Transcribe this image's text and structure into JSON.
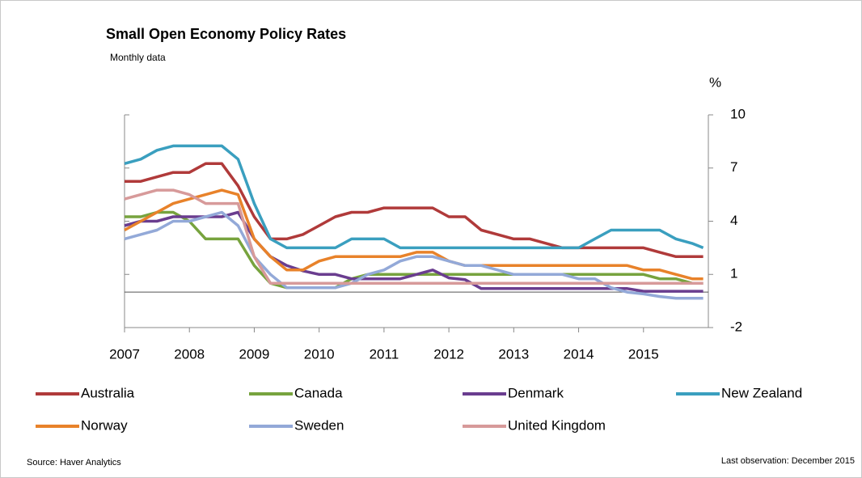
{
  "chart_data": {
    "type": "line",
    "title": "Small Open Economy  Policy Rates",
    "subtitle": "Monthly data",
    "y_label": "%",
    "source": "Source: Haver Analytics",
    "note": "Last observation: December  2015",
    "legend": "bottom",
    "xlim": [
      2007,
      2016
    ],
    "xticks": [
      2007,
      2008,
      2009,
      2010,
      2011,
      2012,
      2013,
      2014,
      2015
    ],
    "ylim": [
      -2,
      10
    ],
    "yticks": [
      -2,
      1,
      4,
      7,
      10
    ],
    "x": [
      2007,
      2007.25,
      2007.5,
      2007.75,
      2008,
      2008.25,
      2008.5,
      2008.75,
      2009,
      2009.25,
      2009.5,
      2009.75,
      2010,
      2010.25,
      2010.5,
      2010.75,
      2011,
      2011.25,
      2011.5,
      2011.75,
      2012,
      2012.25,
      2012.5,
      2012.75,
      2013,
      2013.25,
      2013.5,
      2013.75,
      2014,
      2014.25,
      2014.5,
      2014.75,
      2015,
      2015.25,
      2015.5,
      2015.75,
      2015.92
    ],
    "series": [
      {
        "name": "Australia",
        "color": "#b03a3a",
        "values": [
          6.25,
          6.25,
          6.5,
          6.75,
          6.75,
          7.25,
          7.25,
          6.0,
          4.25,
          3.0,
          3.0,
          3.25,
          3.75,
          4.25,
          4.5,
          4.5,
          4.75,
          4.75,
          4.75,
          4.75,
          4.25,
          4.25,
          3.5,
          3.25,
          3.0,
          3.0,
          2.75,
          2.5,
          2.5,
          2.5,
          2.5,
          2.5,
          2.5,
          2.25,
          2.0,
          2.0,
          2.0
        ]
      },
      {
        "name": "Canada",
        "color": "#77a33e",
        "values": [
          4.25,
          4.25,
          4.5,
          4.5,
          4.0,
          3.0,
          3.0,
          3.0,
          1.5,
          0.5,
          0.25,
          0.25,
          0.25,
          0.25,
          0.75,
          1.0,
          1.0,
          1.0,
          1.0,
          1.0,
          1.0,
          1.0,
          1.0,
          1.0,
          1.0,
          1.0,
          1.0,
          1.0,
          1.0,
          1.0,
          1.0,
          1.0,
          1.0,
          0.75,
          0.75,
          0.5,
          0.5
        ]
      },
      {
        "name": "Denmark",
        "color": "#6a3d8f",
        "values": [
          3.75,
          4.0,
          4.0,
          4.25,
          4.25,
          4.25,
          4.25,
          4.5,
          3.0,
          2.0,
          1.5,
          1.2,
          1.0,
          1.0,
          0.75,
          0.75,
          0.75,
          0.75,
          1.0,
          1.25,
          0.8,
          0.7,
          0.2,
          0.2,
          0.2,
          0.2,
          0.2,
          0.2,
          0.2,
          0.2,
          0.2,
          0.2,
          0.05,
          0.05,
          0.05,
          0.05,
          0.05
        ]
      },
      {
        "name": "New Zealand",
        "color": "#3a9fbf",
        "values": [
          7.25,
          7.5,
          8.0,
          8.25,
          8.25,
          8.25,
          8.25,
          7.5,
          5.0,
          3.0,
          2.5,
          2.5,
          2.5,
          2.5,
          3.0,
          3.0,
          3.0,
          2.5,
          2.5,
          2.5,
          2.5,
          2.5,
          2.5,
          2.5,
          2.5,
          2.5,
          2.5,
          2.5,
          2.5,
          3.0,
          3.5,
          3.5,
          3.5,
          3.5,
          3.0,
          2.75,
          2.5
        ]
      },
      {
        "name": "Norway",
        "color": "#e8822a",
        "values": [
          3.5,
          4.0,
          4.5,
          5.0,
          5.25,
          5.5,
          5.75,
          5.5,
          3.0,
          2.0,
          1.25,
          1.25,
          1.75,
          2.0,
          2.0,
          2.0,
          2.0,
          2.0,
          2.25,
          2.25,
          1.75,
          1.5,
          1.5,
          1.5,
          1.5,
          1.5,
          1.5,
          1.5,
          1.5,
          1.5,
          1.5,
          1.5,
          1.25,
          1.25,
          1.0,
          0.75,
          0.75
        ]
      },
      {
        "name": "Sweden",
        "color": "#93a9d8",
        "values": [
          3.0,
          3.25,
          3.5,
          4.0,
          4.0,
          4.25,
          4.5,
          3.75,
          2.0,
          1.0,
          0.25,
          0.25,
          0.25,
          0.25,
          0.5,
          1.0,
          1.25,
          1.75,
          2.0,
          2.0,
          1.75,
          1.5,
          1.5,
          1.25,
          1.0,
          1.0,
          1.0,
          1.0,
          0.75,
          0.75,
          0.25,
          0.0,
          -0.1,
          -0.25,
          -0.35,
          -0.35,
          -0.35
        ]
      },
      {
        "name": "United Kingdom",
        "color": "#d79a9a",
        "values": [
          5.25,
          5.5,
          5.75,
          5.75,
          5.5,
          5.0,
          5.0,
          5.0,
          2.0,
          0.5,
          0.5,
          0.5,
          0.5,
          0.5,
          0.5,
          0.5,
          0.5,
          0.5,
          0.5,
          0.5,
          0.5,
          0.5,
          0.5,
          0.5,
          0.5,
          0.5,
          0.5,
          0.5,
          0.5,
          0.5,
          0.5,
          0.5,
          0.5,
          0.5,
          0.5,
          0.5,
          0.5
        ]
      }
    ]
  }
}
